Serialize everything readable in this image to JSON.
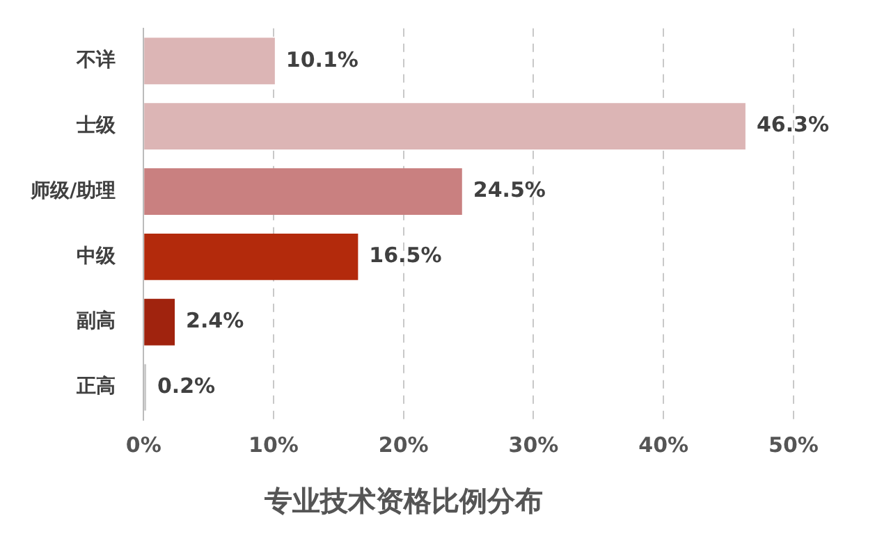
{
  "chart_data": {
    "type": "bar",
    "orientation": "horizontal",
    "title": "专业技术资格比例分布",
    "categories": [
      "不详",
      "士级",
      "师级/助理",
      "中级",
      "副高",
      "正高"
    ],
    "values": [
      10.1,
      46.3,
      24.5,
      16.5,
      2.4,
      0.2
    ],
    "colors": [
      "#dcb5b5",
      "#dcb5b5",
      "#c98080",
      "#b32a0c",
      "#a0230e",
      "#c8c8c8"
    ],
    "value_labels": [
      "10.1%",
      "46.3%",
      "24.5%",
      "16.5%",
      "2.4%",
      "0.2%"
    ],
    "xlim": [
      0,
      50
    ],
    "xticks": [
      {
        "value": 0,
        "label": "0%"
      },
      {
        "value": 10,
        "label": "10%"
      },
      {
        "value": 20,
        "label": "20%"
      },
      {
        "value": 30,
        "label": "30%"
      },
      {
        "value": 40,
        "label": "40%"
      },
      {
        "value": 50,
        "label": "50%"
      }
    ],
    "grid": "x",
    "legend": false
  }
}
